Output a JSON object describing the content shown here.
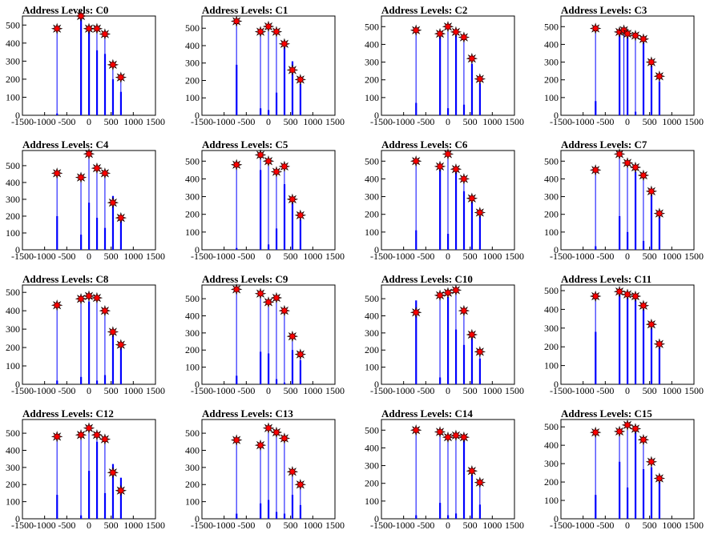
{
  "chart_data": [
    {
      "type": "bar",
      "title": "Address Levels: C0",
      "xlim": [
        -1500,
        1500
      ],
      "ylim": [
        0,
        550
      ],
      "xticks": [
        -1500,
        -1000,
        -500,
        0,
        500,
        1000,
        1500
      ],
      "yticks": [
        0,
        100,
        200,
        300,
        400,
        500
      ],
      "peaks": [
        {
          "x": -720,
          "y": 480,
          "count": 10
        },
        {
          "x": -180,
          "y": 550,
          "count": 550
        },
        {
          "x": 0,
          "y": 480,
          "count": 480
        },
        {
          "x": 180,
          "y": 480,
          "count": 360
        },
        {
          "x": 360,
          "y": 450,
          "count": 340
        },
        {
          "x": 540,
          "y": 280,
          "count": 200
        },
        {
          "x": 720,
          "y": 210,
          "count": 130
        }
      ]
    },
    {
      "type": "bar",
      "title": "Address Levels: C1",
      "xlim": [
        -1500,
        1500
      ],
      "ylim": [
        0,
        570
      ],
      "xticks": [
        -1500,
        -1000,
        -500,
        0,
        500,
        1000,
        1500
      ],
      "yticks": [
        0,
        100,
        200,
        300,
        400,
        500
      ],
      "peaks": [
        {
          "x": -720,
          "y": 540,
          "count": 290
        },
        {
          "x": -180,
          "y": 480,
          "count": 40
        },
        {
          "x": 0,
          "y": 510,
          "count": 30
        },
        {
          "x": 180,
          "y": 480,
          "count": 130
        },
        {
          "x": 360,
          "y": 410,
          "count": 400
        },
        {
          "x": 540,
          "y": 260,
          "count": 310
        },
        {
          "x": 720,
          "y": 205,
          "count": 180
        }
      ]
    },
    {
      "type": "bar",
      "title": "Address Levels: C2",
      "xlim": [
        -1500,
        1500
      ],
      "ylim": [
        0,
        560
      ],
      "xticks": [
        -1500,
        -1000,
        -500,
        0,
        500,
        1000,
        1500
      ],
      "yticks": [
        0,
        100,
        200,
        300,
        400,
        500
      ],
      "peaks": [
        {
          "x": -720,
          "y": 480,
          "count": 70
        },
        {
          "x": -180,
          "y": 460,
          "count": 460
        },
        {
          "x": 0,
          "y": 500,
          "count": 40
        },
        {
          "x": 180,
          "y": 470,
          "count": 460
        },
        {
          "x": 360,
          "y": 440,
          "count": 60
        },
        {
          "x": 540,
          "y": 320,
          "count": 290
        },
        {
          "x": 720,
          "y": 205,
          "count": 180
        }
      ]
    },
    {
      "type": "bar",
      "title": "Address Levels: C3",
      "xlim": [
        -1500,
        1500
      ],
      "ylim": [
        0,
        560
      ],
      "xticks": [
        -1500,
        -1000,
        -500,
        0,
        500,
        1000,
        1500
      ],
      "yticks": [
        0,
        100,
        200,
        300,
        400,
        500
      ],
      "peaks": [
        {
          "x": -720,
          "y": 490,
          "count": 80
        },
        {
          "x": -180,
          "y": 470,
          "count": 470
        },
        {
          "x": -80,
          "y": 480,
          "count": 0
        },
        {
          "x": 0,
          "y": 460,
          "count": 460
        },
        {
          "x": 180,
          "y": 450,
          "count": 20
        },
        {
          "x": 360,
          "y": 430,
          "count": 420
        },
        {
          "x": 540,
          "y": 300,
          "count": 280
        },
        {
          "x": 720,
          "y": 220,
          "count": 190
        }
      ]
    },
    {
      "type": "bar",
      "title": "Address Levels: C4",
      "xlim": [
        -1500,
        1500
      ],
      "ylim": [
        0,
        590
      ],
      "xticks": [
        -1500,
        -1000,
        -500,
        0,
        500,
        1000,
        1500
      ],
      "yticks": [
        0,
        100,
        200,
        300,
        400,
        500
      ],
      "peaks": [
        {
          "x": -720,
          "y": 455,
          "count": 200
        },
        {
          "x": -180,
          "y": 430,
          "count": 90
        },
        {
          "x": 0,
          "y": 570,
          "count": 280
        },
        {
          "x": 180,
          "y": 485,
          "count": 190
        },
        {
          "x": 360,
          "y": 455,
          "count": 130
        },
        {
          "x": 540,
          "y": 280,
          "count": 320
        },
        {
          "x": 720,
          "y": 190,
          "count": 180
        }
      ]
    },
    {
      "type": "bar",
      "title": "Address Levels: C5",
      "xlim": [
        -1500,
        1500
      ],
      "ylim": [
        0,
        560
      ],
      "xticks": [
        -1500,
        -1000,
        -500,
        0,
        500,
        1000,
        1500
      ],
      "yticks": [
        0,
        100,
        200,
        300,
        400,
        500
      ],
      "peaks": [
        {
          "x": -720,
          "y": 480,
          "count": 10
        },
        {
          "x": -180,
          "y": 535,
          "count": 450
        },
        {
          "x": 0,
          "y": 500,
          "count": 30
        },
        {
          "x": 180,
          "y": 440,
          "count": 120
        },
        {
          "x": 360,
          "y": 470,
          "count": 370
        },
        {
          "x": 540,
          "y": 285,
          "count": 270
        },
        {
          "x": 720,
          "y": 195,
          "count": 170
        }
      ]
    },
    {
      "type": "bar",
      "title": "Address Levels: C6",
      "xlim": [
        -1500,
        1500
      ],
      "ylim": [
        0,
        560
      ],
      "xticks": [
        -1500,
        -1000,
        -500,
        0,
        500,
        1000,
        1500
      ],
      "yticks": [
        0,
        100,
        200,
        300,
        400,
        500
      ],
      "peaks": [
        {
          "x": -720,
          "y": 500,
          "count": 110
        },
        {
          "x": -180,
          "y": 470,
          "count": 460
        },
        {
          "x": 0,
          "y": 540,
          "count": 90
        },
        {
          "x": 180,
          "y": 455,
          "count": 440
        },
        {
          "x": 360,
          "y": 400,
          "count": 330
        },
        {
          "x": 540,
          "y": 290,
          "count": 270
        },
        {
          "x": 720,
          "y": 210,
          "count": 190
        }
      ]
    },
    {
      "type": "bar",
      "title": "Address Levels: C7",
      "xlim": [
        -1500,
        1500
      ],
      "ylim": [
        0,
        560
      ],
      "xticks": [
        -1500,
        -1000,
        -500,
        0,
        500,
        1000,
        1500
      ],
      "yticks": [
        0,
        100,
        200,
        300,
        400,
        500
      ],
      "peaks": [
        {
          "x": -720,
          "y": 450,
          "count": 20
        },
        {
          "x": -180,
          "y": 540,
          "count": 190
        },
        {
          "x": 0,
          "y": 490,
          "count": 100
        },
        {
          "x": 180,
          "y": 465,
          "count": 440
        },
        {
          "x": 360,
          "y": 420,
          "count": 50
        },
        {
          "x": 540,
          "y": 330,
          "count": 310
        },
        {
          "x": 720,
          "y": 205,
          "count": 190
        }
      ]
    },
    {
      "type": "bar",
      "title": "Address Levels: C8",
      "xlim": [
        -1500,
        1500
      ],
      "ylim": [
        0,
        540
      ],
      "xticks": [
        -1500,
        -1000,
        -500,
        0,
        500,
        1000,
        1500
      ],
      "yticks": [
        0,
        100,
        200,
        300,
        400,
        500
      ],
      "peaks": [
        {
          "x": -720,
          "y": 430,
          "count": 20
        },
        {
          "x": -180,
          "y": 465,
          "count": 40
        },
        {
          "x": 0,
          "y": 480,
          "count": 450
        },
        {
          "x": 180,
          "y": 470,
          "count": 20
        },
        {
          "x": 360,
          "y": 400,
          "count": 50
        },
        {
          "x": 540,
          "y": 285,
          "count": 270
        },
        {
          "x": 720,
          "y": 215,
          "count": 200
        }
      ]
    },
    {
      "type": "bar",
      "title": "Address Levels: C9",
      "xlim": [
        -1500,
        1500
      ],
      "ylim": [
        0,
        580
      ],
      "xticks": [
        -1500,
        -1000,
        -500,
        0,
        500,
        1000,
        1500
      ],
      "yticks": [
        0,
        100,
        200,
        300,
        400,
        500
      ],
      "peaks": [
        {
          "x": -720,
          "y": 555,
          "count": 50
        },
        {
          "x": -180,
          "y": 530,
          "count": 190
        },
        {
          "x": 0,
          "y": 480,
          "count": 180
        },
        {
          "x": 180,
          "y": 505,
          "count": 30
        },
        {
          "x": 360,
          "y": 430,
          "count": 10
        },
        {
          "x": 540,
          "y": 280,
          "count": 200
        },
        {
          "x": 720,
          "y": 175,
          "count": 140
        }
      ]
    },
    {
      "type": "bar",
      "title": "Address Levels: C10",
      "xlim": [
        -1500,
        1500
      ],
      "ylim": [
        0,
        580
      ],
      "xticks": [
        -1500,
        -1000,
        -500,
        0,
        500,
        1000,
        1500
      ],
      "yticks": [
        0,
        100,
        200,
        300,
        400,
        500
      ],
      "peaks": [
        {
          "x": -720,
          "y": 420,
          "count": 490
        },
        {
          "x": -180,
          "y": 520,
          "count": 40
        },
        {
          "x": 0,
          "y": 535,
          "count": 510
        },
        {
          "x": 180,
          "y": 550,
          "count": 320
        },
        {
          "x": 360,
          "y": 430,
          "count": 230
        },
        {
          "x": 540,
          "y": 290,
          "count": 270
        },
        {
          "x": 720,
          "y": 190,
          "count": 150
        }
      ]
    },
    {
      "type": "bar",
      "title": "Address Levels: C11",
      "xlim": [
        -1500,
        1500
      ],
      "ylim": [
        0,
        530
      ],
      "xticks": [
        -1500,
        -1000,
        -500,
        0,
        500,
        1000,
        1500
      ],
      "yticks": [
        0,
        100,
        200,
        300,
        400,
        500
      ],
      "peaks": [
        {
          "x": -720,
          "y": 470,
          "count": 280
        },
        {
          "x": -180,
          "y": 495,
          "count": 490
        },
        {
          "x": 0,
          "y": 480,
          "count": 480
        },
        {
          "x": 180,
          "y": 470,
          "count": 450
        },
        {
          "x": 360,
          "y": 420,
          "count": 400
        },
        {
          "x": 540,
          "y": 320,
          "count": 300
        },
        {
          "x": 720,
          "y": 215,
          "count": 200
        }
      ]
    },
    {
      "type": "bar",
      "title": "Address Levels: C12",
      "xlim": [
        -1500,
        1500
      ],
      "ylim": [
        0,
        580
      ],
      "xticks": [
        -1500,
        -1000,
        -500,
        0,
        500,
        1000,
        1500
      ],
      "yticks": [
        0,
        100,
        200,
        300,
        400,
        500
      ],
      "peaks": [
        {
          "x": -720,
          "y": 480,
          "count": 140
        },
        {
          "x": -180,
          "y": 490,
          "count": 20
        },
        {
          "x": 0,
          "y": 530,
          "count": 280
        },
        {
          "x": 180,
          "y": 490,
          "count": 450
        },
        {
          "x": 360,
          "y": 465,
          "count": 150
        },
        {
          "x": 540,
          "y": 270,
          "count": 320
        },
        {
          "x": 720,
          "y": 165,
          "count": 240
        }
      ]
    },
    {
      "type": "bar",
      "title": "Address Levels: C13",
      "xlim": [
        -1500,
        1500
      ],
      "ylim": [
        0,
        580
      ],
      "xticks": [
        -1500,
        -1000,
        -500,
        0,
        500,
        1000,
        1500
      ],
      "yticks": [
        0,
        100,
        200,
        300,
        400,
        500
      ],
      "peaks": [
        {
          "x": -720,
          "y": 460,
          "count": 30
        },
        {
          "x": -180,
          "y": 430,
          "count": 90
        },
        {
          "x": 0,
          "y": 530,
          "count": 110
        },
        {
          "x": 180,
          "y": 505,
          "count": 40
        },
        {
          "x": 360,
          "y": 470,
          "count": 30
        },
        {
          "x": 540,
          "y": 275,
          "count": 140
        },
        {
          "x": 720,
          "y": 200,
          "count": 80
        }
      ]
    },
    {
      "type": "bar",
      "title": "Address Levels: C14",
      "xlim": [
        -1500,
        1500
      ],
      "ylim": [
        0,
        560
      ],
      "xticks": [
        -1500,
        -1000,
        -500,
        0,
        500,
        1000,
        1500
      ],
      "yticks": [
        0,
        100,
        200,
        300,
        400,
        500
      ],
      "peaks": [
        {
          "x": -720,
          "y": 500,
          "count": 20
        },
        {
          "x": -180,
          "y": 490,
          "count": 90
        },
        {
          "x": 0,
          "y": 460,
          "count": 20
        },
        {
          "x": 180,
          "y": 470,
          "count": 30
        },
        {
          "x": 360,
          "y": 460,
          "count": 450
        },
        {
          "x": 540,
          "y": 270,
          "count": 250
        },
        {
          "x": 720,
          "y": 205,
          "count": 80
        }
      ]
    },
    {
      "type": "bar",
      "title": "Address Levels: C15",
      "xlim": [
        -1500,
        1500
      ],
      "ylim": [
        0,
        540
      ],
      "xticks": [
        -1500,
        -1000,
        -500,
        0,
        500,
        1000,
        1500
      ],
      "yticks": [
        0,
        100,
        200,
        300,
        400,
        500
      ],
      "peaks": [
        {
          "x": -720,
          "y": 470,
          "count": 130
        },
        {
          "x": -180,
          "y": 475,
          "count": 310
        },
        {
          "x": 0,
          "y": 510,
          "count": 170
        },
        {
          "x": 180,
          "y": 490,
          "count": 480
        },
        {
          "x": 360,
          "y": 430,
          "count": 270
        },
        {
          "x": 540,
          "y": 310,
          "count": 280
        },
        {
          "x": 720,
          "y": 220,
          "count": 200
        }
      ]
    }
  ],
  "colors": {
    "bar": "#0000ff",
    "marker": "#ff0000",
    "marker_edge": "#000000",
    "axis": "#000000"
  }
}
